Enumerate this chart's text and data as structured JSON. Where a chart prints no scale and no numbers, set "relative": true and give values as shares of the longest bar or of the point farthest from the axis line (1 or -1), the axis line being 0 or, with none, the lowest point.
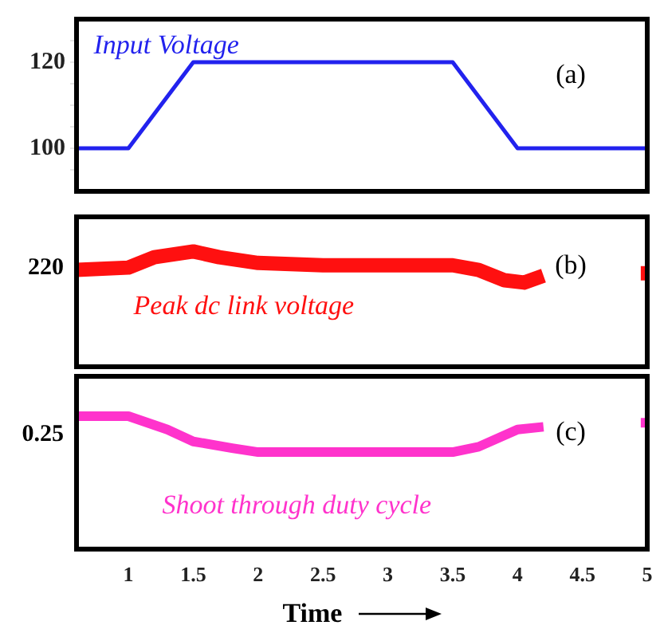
{
  "chart_data": [
    {
      "type": "line",
      "series": [
        {
          "name": "Input Voltage",
          "color": "#2222ee",
          "x": [
            0.6,
            1,
            1.5,
            3.5,
            4,
            5
          ],
          "values": [
            100,
            100,
            120,
            120,
            100,
            100
          ]
        }
      ],
      "xlim": [
        0.6,
        5
      ],
      "xticks": [
        1,
        1.5,
        2,
        2.5,
        3,
        3.5,
        4,
        4.5,
        5
      ],
      "ylim": [
        90,
        130
      ],
      "yticks": [
        {
          "value": 95,
          "label": null
        },
        100,
        {
          "value": 105,
          "label": null
        },
        {
          "value": 110,
          "label": null
        },
        {
          "value": 115,
          "label": null
        },
        120,
        {
          "value": 125,
          "label": null
        }
      ],
      "tick_labels": "y",
      "grid": false,
      "legend": false,
      "annotations": [
        "(a)"
      ]
    },
    {
      "type": "line",
      "relative": true,
      "series": [
        {
          "name": "Peak dc link voltage",
          "color": "#ff1010",
          "x": [
            0.6,
            1,
            1.2,
            1.5,
            1.7,
            2,
            2.5,
            3,
            3.5,
            3.7,
            3.9,
            4.05,
            4.2,
            4.6,
            4.95,
            5
          ],
          "values": [
            0.84,
            0.86,
            0.95,
            1,
            0.95,
            0.9,
            0.88,
            0.88,
            0.88,
            0.84,
            0.75,
            0.73,
            0.79,
            null,
            0.81,
            0.81
          ]
        }
      ],
      "xlim": [
        0.6,
        5
      ],
      "xticks": [
        1,
        1.5,
        2,
        2.5,
        3,
        3.5,
        4,
        4.5,
        5
      ],
      "tick_labels": false,
      "grid": false,
      "legend": false,
      "annotations": [
        "(b)",
        "220"
      ]
    },
    {
      "type": "line",
      "relative": true,
      "series": [
        {
          "name": "Shoot through duty cycle",
          "color": "#ff33cc",
          "x": [
            0.6,
            1,
            1.3,
            1.5,
            1.8,
            2,
            3.5,
            3.7,
            4,
            4.2,
            4.6,
            4.95,
            5
          ],
          "values": [
            1,
            1,
            0.9,
            0.81,
            0.76,
            0.73,
            0.73,
            0.77,
            0.9,
            0.92,
            null,
            0.95,
            0.95
          ]
        }
      ],
      "xlim": [
        0.6,
        5
      ],
      "xticks": [
        1,
        1.5,
        2,
        2.5,
        3,
        3.5,
        4,
        4.5,
        5
      ],
      "tick_labels": "x",
      "grid": false,
      "legend": false,
      "xlabel": "Time",
      "annotations": [
        "(c)",
        "0.25"
      ]
    }
  ]
}
